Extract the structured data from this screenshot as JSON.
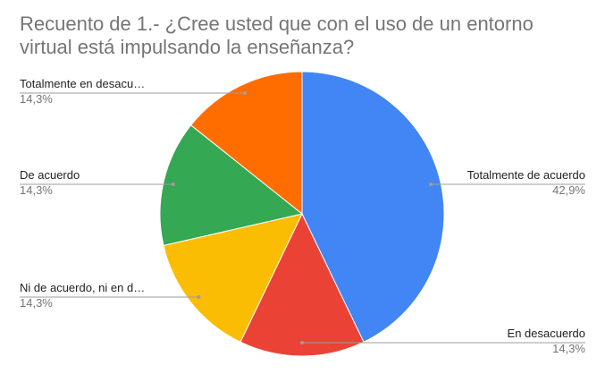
{
  "chart_data": {
    "type": "pie",
    "title_lines": [
      "Recuento de 1.-  ¿Cree usted que con el uso de un entorno",
      "virtual está impulsando la enseñanza?"
    ],
    "slices": [
      {
        "label": "Totalmente de acuerdo",
        "value": 42.9,
        "display": "42,9%",
        "color": "#4285F4"
      },
      {
        "label": "En desacuerdo",
        "value": 14.3,
        "display": "14,3%",
        "color": "#EA4335"
      },
      {
        "label": "Ni de acuerdo, ni en d…",
        "value": 14.3,
        "display": "14,3%",
        "color": "#FBBC04"
      },
      {
        "label": "De acuerdo",
        "value": 14.3,
        "display": "14,3%",
        "color": "#34A853"
      },
      {
        "label": "Totalmente en desacu…",
        "value": 14.3,
        "display": "14,3%",
        "color": "#FF6D01"
      }
    ],
    "start_angle": "12 o'clock",
    "direction": "clockwise",
    "legend": "none"
  }
}
